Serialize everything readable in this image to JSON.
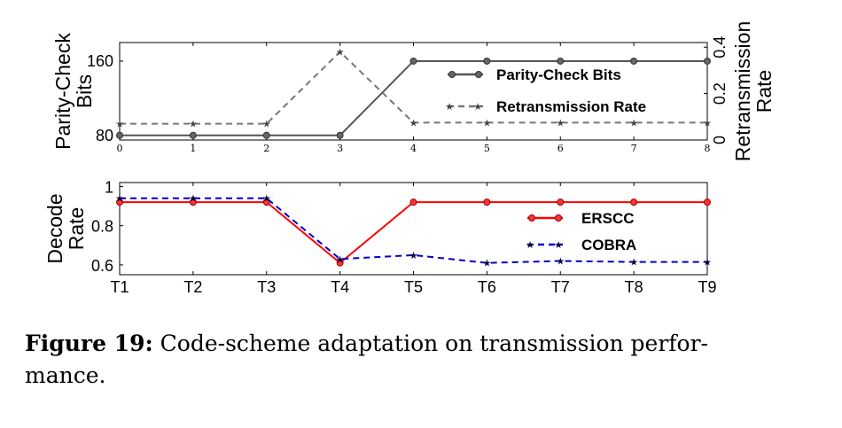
{
  "caption": {
    "label": "Figure 19:",
    "text": "Code-scheme adaptation on transmission perfor-\nmance."
  },
  "chart_data": [
    {
      "type": "line",
      "x": [
        0,
        1,
        2,
        3,
        4,
        5,
        6,
        7,
        8
      ],
      "xticks": [
        "0",
        "1",
        "2",
        "3",
        "4",
        "5",
        "6",
        "7",
        "8"
      ],
      "ylabel": [
        "Parity-Check",
        "Bits"
      ],
      "ylim": [
        75,
        180
      ],
      "yticks": [
        80,
        160
      ],
      "y2label": [
        "Retransmission",
        "Rate"
      ],
      "y2lim": [
        0,
        0.42
      ],
      "y2ticks": [
        0,
        0.2,
        0.4
      ],
      "grid": false,
      "legend_position": "right",
      "series": [
        {
          "name": "Parity-Check Bits",
          "axis": "left",
          "style": "solid",
          "marker": "circle",
          "color": "#555555",
          "values": [
            80,
            80,
            80,
            80,
            160,
            160,
            160,
            160,
            160
          ]
        },
        {
          "name": "Retransmission Rate",
          "axis": "right",
          "style": "dashed",
          "marker": "star",
          "color": "#777777",
          "values": [
            0.07,
            0.07,
            0.07,
            0.38,
            0.075,
            0.075,
            0.075,
            0.075,
            0.075
          ]
        }
      ]
    },
    {
      "type": "line",
      "x": [
        0,
        1,
        2,
        3,
        4,
        5,
        6,
        7,
        8
      ],
      "xticks": [
        "T1",
        "T2",
        "T3",
        "T4",
        "T5",
        "T6",
        "T7",
        "T8",
        "T9"
      ],
      "ylabel": [
        "Decode",
        "Rate"
      ],
      "ylim": [
        0.55,
        1.02
      ],
      "yticks": [
        "0.6",
        "0.8",
        "1"
      ],
      "grid": false,
      "legend_position": "right",
      "series": [
        {
          "name": "ERSCC",
          "style": "solid",
          "marker": "circle",
          "color": "#ff0000",
          "values": [
            0.92,
            0.92,
            0.92,
            0.61,
            0.92,
            0.92,
            0.92,
            0.92,
            0.92
          ]
        },
        {
          "name": "COBRA",
          "style": "dashed",
          "marker": "star",
          "color": "#0000cc",
          "values": [
            0.94,
            0.94,
            0.94,
            0.63,
            0.65,
            0.61,
            0.62,
            0.615,
            0.615
          ]
        }
      ]
    }
  ]
}
